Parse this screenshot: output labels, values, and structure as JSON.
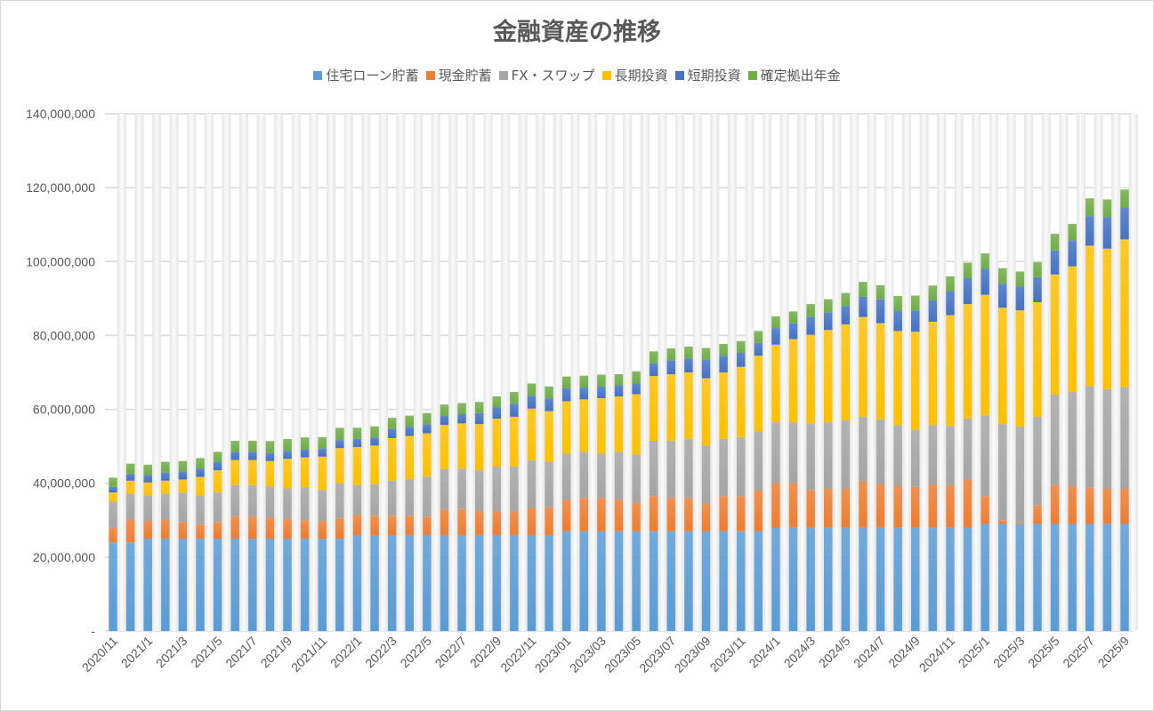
{
  "chart_data": {
    "type": "bar",
    "stacked": true,
    "title": "金融資産の推移",
    "xlabel": "",
    "ylabel": "",
    "ylim": [
      0,
      140000000
    ],
    "yticks": [
      0,
      20000000,
      40000000,
      60000000,
      80000000,
      100000000,
      120000000,
      140000000
    ],
    "ytick_labels": [
      "-",
      "20,000,000",
      "40,000,000",
      "60,000,000",
      "80,000,000",
      "100,000,000",
      "120,000,000",
      "140,000,000"
    ],
    "grid": true,
    "legend_position": "top",
    "categories": [
      "2020/11",
      "2020/12",
      "2021/1",
      "2021/2",
      "2021/3",
      "2021/4",
      "2021/5",
      "2021/6",
      "2021/7",
      "2021/8",
      "2021/9",
      "2021/10",
      "2021/11",
      "2021/12",
      "2022/1",
      "2022/2",
      "2022/3",
      "2022/4",
      "2022/5",
      "2022/6",
      "2022/7",
      "2022/8",
      "2022/9",
      "2022/10",
      "2022/11",
      "2022/12",
      "2023/01",
      "2023/02",
      "2023/03",
      "2023/04",
      "2023/05",
      "2023/06",
      "2023/07",
      "2023/08",
      "2023/09",
      "2023/10",
      "2023/11",
      "2023/12",
      "2024/1",
      "2024/2",
      "2024/3",
      "2024/4",
      "2024/5",
      "2024/6",
      "2024/7",
      "2024/8",
      "2024/9",
      "2024/10",
      "2024/11",
      "2024/12",
      "2025/1",
      "2025/2",
      "2025/3",
      "2025/4",
      "2025/5",
      "2025/6",
      "2025/7",
      "2025/8",
      "2025/9"
    ],
    "xtick_labels": [
      "2020/11",
      "2021/1",
      "2021/3",
      "2021/5",
      "2021/7",
      "2021/9",
      "2021/11",
      "2022/1",
      "2022/3",
      "2022/5",
      "2022/7",
      "2022/9",
      "2022/11",
      "2023/01",
      "2023/03",
      "2023/05",
      "2023/07",
      "2023/09",
      "2023/11",
      "2024/1",
      "2024/3",
      "2024/5",
      "2024/7",
      "2024/9",
      "2024/11",
      "2025/1",
      "2025/3",
      "2025/5",
      "2025/7",
      "2025/9"
    ],
    "series": [
      {
        "name": "住宅ローン貯蓄",
        "color": "#5B9BD5",
        "values": [
          24,
          24,
          25,
          25,
          25,
          25,
          25,
          25,
          25,
          25,
          25,
          25,
          25,
          25,
          26,
          26,
          26,
          26,
          26,
          26,
          26,
          26,
          26,
          26,
          26,
          26,
          27,
          27,
          27,
          27,
          27,
          27,
          27,
          27,
          27,
          27,
          27,
          27,
          28,
          28,
          28,
          28,
          28,
          28,
          28,
          28,
          28,
          28,
          28,
          28,
          29,
          29,
          29,
          29,
          29,
          29,
          29,
          29,
          29
        ]
      },
      {
        "name": "現金貯蓄",
        "color": "#ED7D31",
        "values": [
          4,
          6.2,
          4.7,
          5.2,
          4.5,
          3.8,
          4.5,
          6,
          6,
          5.7,
          5.3,
          5,
          4.7,
          5.5,
          5.5,
          5.2,
          5.2,
          5.2,
          5,
          6.8,
          7,
          6.5,
          6.5,
          6.5,
          7.2,
          7.5,
          8.5,
          9,
          9,
          8.5,
          7.8,
          9.5,
          9,
          9,
          7.4,
          9.5,
          9.5,
          11,
          12,
          12,
          10.2,
          10.5,
          10.5,
          12.5,
          11.8,
          11.2,
          11,
          11.7,
          11.5,
          13,
          7.5,
          1,
          0.3,
          5,
          10.5,
          10.2,
          9.8,
          9.5,
          9.5
        ]
      },
      {
        "name": "FX・スワップ",
        "color": "#A5A5A5",
        "values": [
          7,
          7,
          7,
          7,
          8,
          7.9,
          8,
          8.5,
          8.5,
          8.5,
          8.3,
          9,
          8.5,
          9.5,
          8,
          8.5,
          9.5,
          10,
          10.8,
          11,
          11,
          11,
          12,
          12,
          13,
          12.2,
          12.5,
          12.5,
          12,
          13,
          13,
          15,
          15.5,
          16,
          15.8,
          15.5,
          16,
          16,
          16.5,
          16.5,
          18,
          18,
          18.5,
          17.5,
          17.5,
          16.5,
          15.5,
          16,
          16,
          16.5,
          22,
          26,
          26,
          24,
          24.5,
          25.5,
          27.5,
          27,
          27.5
        ]
      },
      {
        "name": "長期投資",
        "color": "#FFC000",
        "values": [
          2.5,
          3.5,
          3.5,
          3.5,
          3.5,
          5,
          6,
          6.8,
          6.8,
          6.8,
          8,
          8,
          9,
          9.5,
          10.3,
          10.5,
          11.5,
          11.6,
          11.7,
          12,
          12.2,
          12.5,
          13,
          13.5,
          14,
          13.8,
          14.2,
          14.2,
          15,
          15,
          16.3,
          17.5,
          18,
          18,
          18.2,
          18,
          19,
          20.5,
          21,
          22.5,
          24,
          25,
          26,
          27,
          26,
          25.5,
          26.5,
          28,
          30,
          31,
          32.5,
          31.5,
          31.5,
          31,
          32.5,
          34,
          38,
          38,
          40
        ]
      },
      {
        "name": "短期投資",
        "color": "#4472C4",
        "values": [
          1.5,
          1.8,
          2,
          2.2,
          2.2,
          2.2,
          2.2,
          2.2,
          2.2,
          2.2,
          2.2,
          2.2,
          2.2,
          2.2,
          2.2,
          2.2,
          2.5,
          2.5,
          2.5,
          2.5,
          2.5,
          3,
          3,
          3.5,
          3.5,
          3.5,
          3.5,
          3.2,
          3.2,
          3,
          3,
          3.5,
          3.8,
          3.8,
          5,
          4.5,
          3.8,
          3.5,
          4.5,
          4.3,
          4.8,
          4.8,
          5,
          5.5,
          6.5,
          5.5,
          5.8,
          5.8,
          6.5,
          7,
          7,
          6.5,
          6.5,
          6.8,
          6.5,
          7,
          8,
          8.5,
          8.5
        ]
      },
      {
        "name": "確定拠出年金",
        "color": "#70AD47",
        "values": [
          2.5,
          2.8,
          2.8,
          2.9,
          2.8,
          2.9,
          2.8,
          3,
          3,
          3.2,
          3.2,
          3.2,
          3.1,
          3.3,
          3,
          3,
          3,
          3,
          3,
          3,
          3,
          3,
          3,
          3.2,
          3.3,
          3.2,
          3.2,
          3.2,
          3.2,
          3,
          3.2,
          3.2,
          3.2,
          3.2,
          3.2,
          3.2,
          3.2,
          3.2,
          3.2,
          3.2,
          3.5,
          3.5,
          3.5,
          4,
          3.8,
          4,
          4,
          4,
          4,
          4.2,
          4.2,
          4.2,
          4,
          4,
          4.5,
          4.5,
          4.8,
          4.8,
          5
        ]
      }
    ],
    "value_unit": "1,000,000"
  },
  "legend": [
    {
      "label": "住宅ローン貯蓄",
      "color": "#5B9BD5"
    },
    {
      "label": "現金貯蓄",
      "color": "#ED7D31"
    },
    {
      "label": "FX・スワップ",
      "color": "#A5A5A5"
    },
    {
      "label": "長期投資",
      "color": "#FFC000"
    },
    {
      "label": "短期投資",
      "color": "#4472C4"
    },
    {
      "label": "確定拠出年金",
      "color": "#70AD47"
    }
  ]
}
